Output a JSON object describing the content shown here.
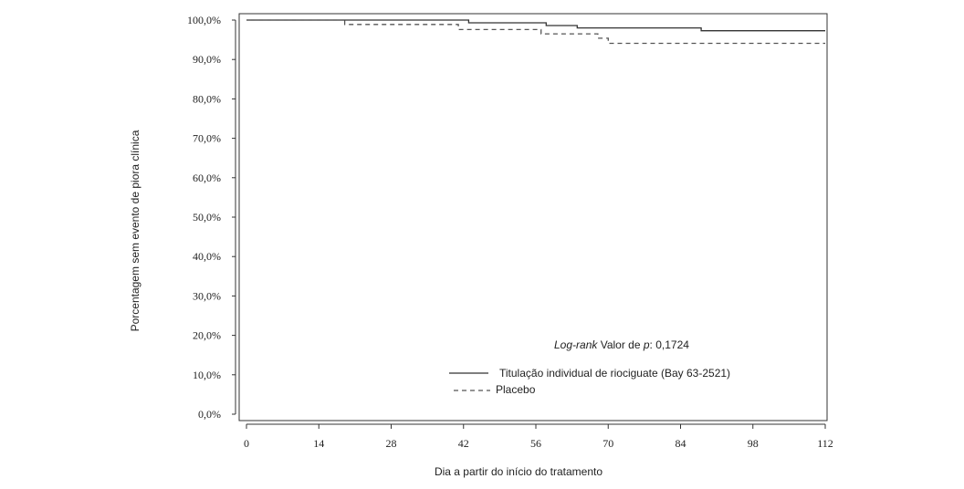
{
  "chart_data": {
    "type": "line",
    "xlabel": "Dia a partir do início do tratamento",
    "ylabel": "Porcentagem sem evento de piora clínica",
    "xlim": [
      0,
      112
    ],
    "ylim": [
      0,
      100
    ],
    "x_ticks": [
      "0",
      "14",
      "28",
      "42",
      "56",
      "70",
      "84",
      "98",
      "112"
    ],
    "y_ticks": [
      "0,0%",
      "10,0%",
      "20,0%",
      "30,0%",
      "40,0%",
      "50,0%",
      "60,0%",
      "70,0%",
      "80,0%",
      "90,0%",
      "100,0%"
    ],
    "series": [
      {
        "name": "Titulação individual de riociguate (Bay 63-2521)",
        "style": "solid",
        "color": "#333333",
        "x": [
          0,
          43,
          43,
          58,
          58,
          64,
          64,
          88,
          88,
          112
        ],
        "y": [
          100,
          100,
          99.3,
          99.3,
          98.6,
          98.6,
          98.0,
          98.0,
          97.3,
          97.3
        ]
      },
      {
        "name": "Placebo",
        "style": "dashed",
        "color": "#555555",
        "x": [
          0,
          19,
          19,
          41,
          41,
          57,
          57,
          68,
          68,
          70,
          70,
          112
        ],
        "y": [
          100,
          100,
          98.9,
          98.9,
          97.6,
          97.6,
          96.5,
          96.5,
          95.4,
          95.4,
          94.1,
          94.1
        ]
      }
    ],
    "pvalue": {
      "prefix": "Log-rank",
      "middle": " Valor de ",
      "p": "p",
      "suffix": ": 0,1724"
    },
    "legend_position": "bottom-right inside plot"
  }
}
